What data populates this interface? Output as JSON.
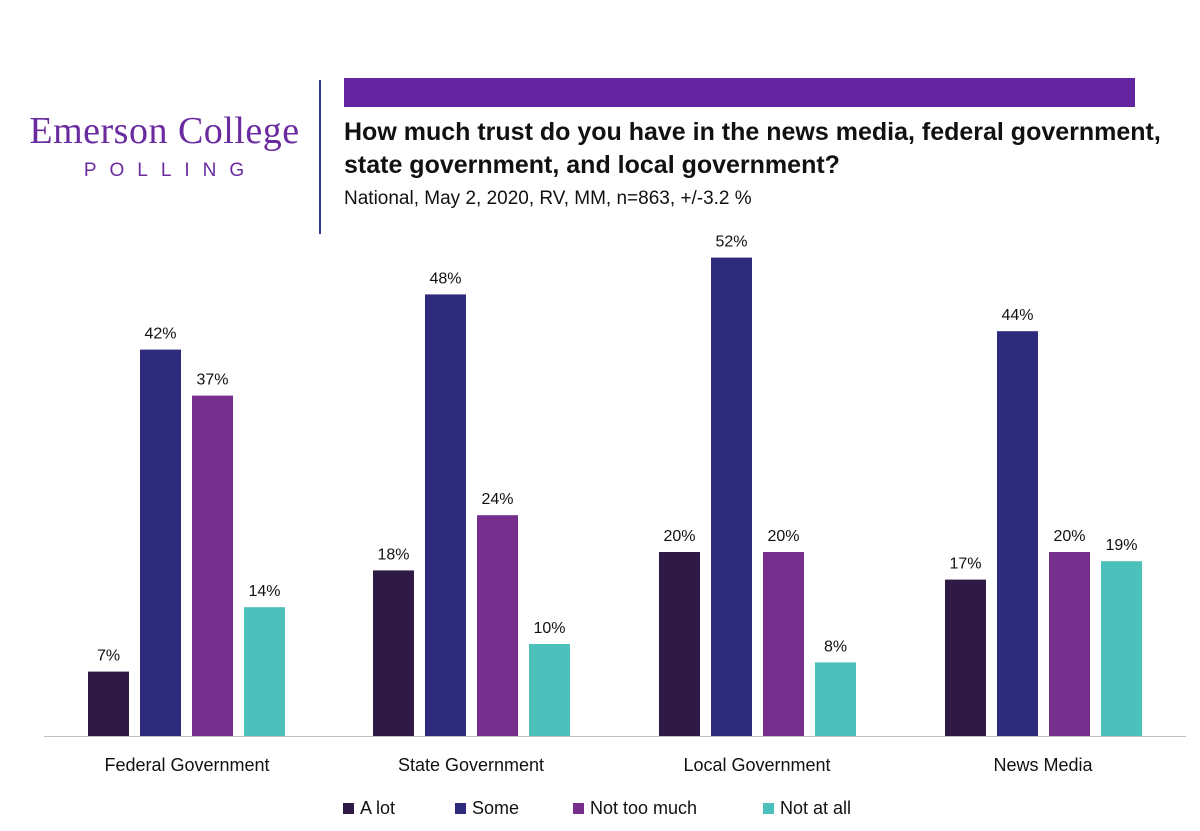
{
  "logo": {
    "name": "Emerson College",
    "sub": "POLLING"
  },
  "title": "How much trust do you have in the news media, federal government, state government, and local government?",
  "subtitle": "National, May 2, 2020, RV, MM, n=863, +/-3.2 %",
  "colors": {
    "accent": "#6325a0",
    "logo": "#6a2ba0"
  },
  "chart_data": {
    "type": "bar",
    "categories": [
      "Federal Government",
      "State Government",
      "Local Government",
      "News Media"
    ],
    "series": [
      {
        "name": "A lot",
        "color": "#2e1a45",
        "values": [
          7,
          18,
          20,
          17
        ],
        "labels": [
          "7%",
          "18%",
          "20%",
          "17%"
        ]
      },
      {
        "name": "Some",
        "color": "#2e2a7c",
        "values": [
          42,
          48,
          52,
          44
        ],
        "labels": [
          "42%",
          "48%",
          "52%",
          "44%"
        ]
      },
      {
        "name": "Not too much",
        "color": "#772f8e",
        "values": [
          37,
          24,
          20,
          20
        ],
        "labels": [
          "37%",
          "24%",
          "20%",
          "20%"
        ]
      },
      {
        "name": "Not at all",
        "color": "#4cc1bb",
        "values": [
          14,
          10,
          8,
          19
        ],
        "labels": [
          "14%",
          "10%",
          "8%",
          "19%"
        ]
      }
    ],
    "ylim": [
      0,
      55
    ],
    "grid": false,
    "legend": "bottom",
    "xlabel": "",
    "ylabel": ""
  }
}
